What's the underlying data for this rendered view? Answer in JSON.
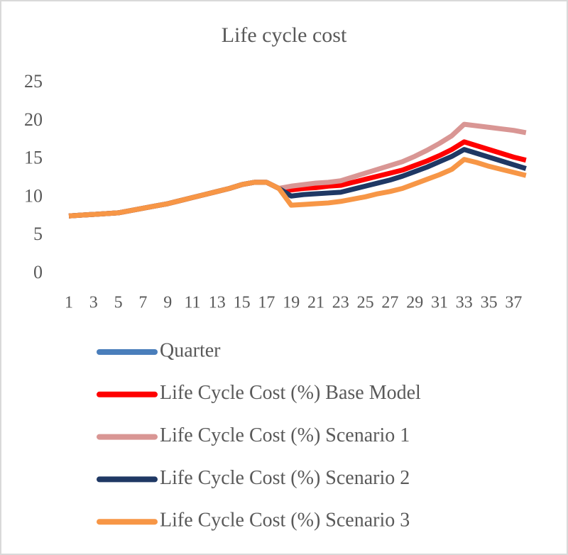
{
  "chart_data": {
    "type": "line",
    "title": "Life cycle cost",
    "categories": [
      "1",
      null,
      "3",
      null,
      "5",
      null,
      "7",
      null,
      "9",
      null,
      "11",
      null,
      "13",
      null,
      "15",
      null,
      "17",
      null,
      "19",
      null,
      "21",
      null,
      "23",
      null,
      "25",
      null,
      "27",
      null,
      "29",
      null,
      "31",
      null,
      "33",
      null,
      "35",
      null,
      "37",
      null
    ],
    "ylim": [
      0,
      25
    ],
    "yticks": [
      0,
      5,
      10,
      15,
      20,
      25
    ],
    "grid": false,
    "series": [
      {
        "name": "Quarter",
        "color": "#4a7ebb",
        "values": [
          null,
          null,
          null,
          null,
          null,
          null,
          null,
          null,
          null,
          null,
          null,
          null,
          null,
          null,
          null,
          null,
          null,
          null,
          null,
          null,
          null,
          null,
          null,
          null,
          null,
          null,
          null,
          null,
          null,
          null,
          null,
          null,
          null,
          null,
          null,
          null,
          null,
          null
        ]
      },
      {
        "name": "Life Cycle Cost (%) Base Model",
        "color": "#ff0000",
        "values": [
          7.6,
          7.7,
          7.8,
          7.9,
          8.0,
          8.3,
          8.6,
          8.9,
          9.2,
          9.6,
          10.0,
          10.4,
          10.8,
          11.2,
          11.7,
          12.0,
          12.0,
          11.2,
          11.0,
          11.2,
          11.3,
          11.5,
          11.6,
          12.0,
          12.4,
          12.8,
          13.2,
          13.6,
          14.2,
          14.8,
          15.5,
          16.3,
          17.3,
          16.8,
          16.3,
          15.8,
          15.3,
          14.9
        ]
      },
      {
        "name": "Life Cycle Cost (%) Scenario 1",
        "color": "#d99694",
        "values": [
          7.6,
          7.7,
          7.8,
          7.9,
          8.0,
          8.3,
          8.6,
          8.9,
          9.2,
          9.6,
          10.0,
          10.4,
          10.8,
          11.2,
          11.7,
          12.0,
          12.0,
          11.2,
          11.5,
          11.7,
          11.9,
          12.0,
          12.2,
          12.7,
          13.2,
          13.7,
          14.2,
          14.7,
          15.4,
          16.2,
          17.1,
          18.1,
          19.6,
          19.4,
          19.2,
          19.0,
          18.8,
          18.5
        ]
      },
      {
        "name": "Life Cycle Cost (%) Scenario 2",
        "color": "#1f3864",
        "values": [
          7.6,
          7.7,
          7.8,
          7.9,
          8.0,
          8.3,
          8.6,
          8.9,
          9.2,
          9.6,
          10.0,
          10.4,
          10.8,
          11.2,
          11.7,
          12.0,
          12.0,
          11.2,
          10.2,
          10.4,
          10.5,
          10.6,
          10.7,
          11.1,
          11.5,
          11.9,
          12.3,
          12.8,
          13.4,
          14.0,
          14.7,
          15.4,
          16.3,
          15.8,
          15.3,
          14.8,
          14.3,
          13.8
        ]
      },
      {
        "name": "Life Cycle Cost (%) Scenario 3",
        "color": "#f79646",
        "values": [
          7.6,
          7.7,
          7.8,
          7.9,
          8.0,
          8.3,
          8.6,
          8.9,
          9.2,
          9.6,
          10.0,
          10.4,
          10.8,
          11.2,
          11.7,
          12.0,
          12.0,
          11.2,
          9.0,
          9.1,
          9.2,
          9.3,
          9.5,
          9.8,
          10.1,
          10.5,
          10.8,
          11.2,
          11.8,
          12.4,
          13.0,
          13.7,
          15.0,
          14.6,
          14.1,
          13.7,
          13.3,
          12.9
        ]
      }
    ]
  }
}
